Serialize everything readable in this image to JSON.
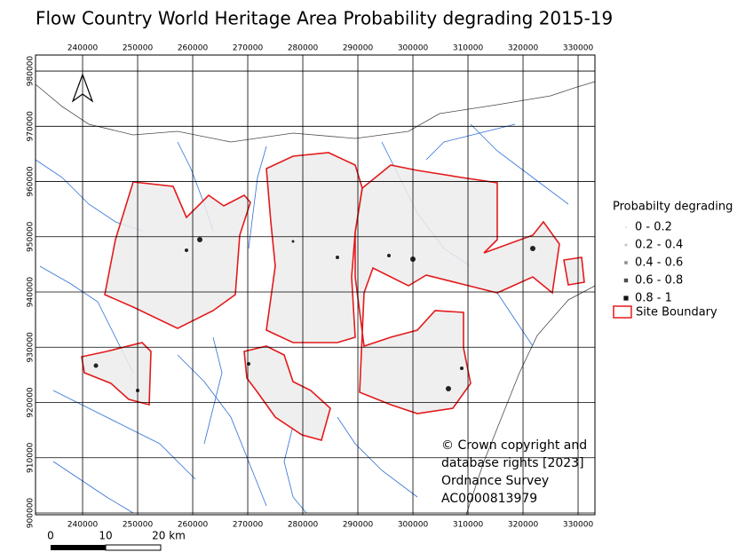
{
  "title": "Flow Country World Heritage Area Probability degrading 2015-19",
  "grid": {
    "xlim": [
      231450,
      333060
    ],
    "ylim": [
      899680,
      982900
    ],
    "eastings": [
      240000,
      250000,
      260000,
      270000,
      280000,
      290000,
      300000,
      310000,
      320000,
      330000
    ],
    "northings": [
      900000,
      910000,
      920000,
      930000,
      940000,
      950000,
      960000,
      970000,
      980000
    ]
  },
  "legend": {
    "title": "Probabilty degrading",
    "items": [
      {
        "label": "0 - 0.2",
        "color": "#e6e6e6"
      },
      {
        "label": "0.2 - 0.4",
        "color": "#c4c4c4"
      },
      {
        "label": "0.4 - 0.6",
        "color": "#8f8f8f"
      },
      {
        "label": "0.6 - 0.8",
        "color": "#4d4d4d"
      },
      {
        "label": "0.8 - 1",
        "color": "#111111"
      }
    ],
    "boundary": {
      "label": "Site Boundary",
      "color": "#e31a1c"
    }
  },
  "copyright": [
    "© Crown copyright and",
    "database rights [2023]",
    "Ordnance Survey",
    "AC0000813979"
  ],
  "scale_bar": {
    "labels": [
      "0",
      "10",
      "20 km"
    ]
  }
}
